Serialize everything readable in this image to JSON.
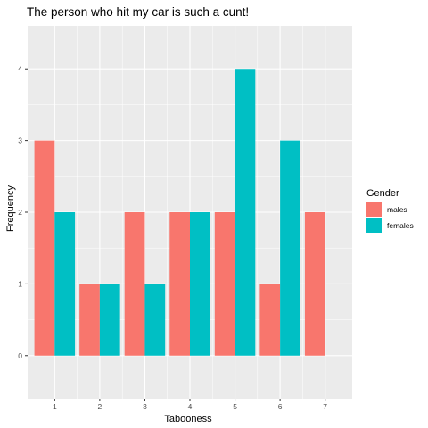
{
  "chart_data": {
    "type": "bar",
    "title": "The person who hit my car is such a cunt!",
    "xlabel": "Tabooness",
    "ylabel": "Frequency",
    "categories": [
      "1",
      "2",
      "3",
      "4",
      "5",
      "6",
      "7"
    ],
    "series": [
      {
        "name": "males",
        "values": [
          3,
          1,
          2,
          2,
          2,
          1,
          2
        ],
        "color": "#F8766D"
      },
      {
        "name": "females",
        "values": [
          2,
          1,
          1,
          2,
          4,
          3,
          null
        ],
        "color": "#00BFC4"
      }
    ],
    "yticks": [
      "0",
      "1",
      "2",
      "3",
      "4"
    ],
    "ylim": [
      -0.6,
      4.6
    ],
    "grid": true,
    "legend": {
      "title": "Gender",
      "position": "right"
    },
    "colors": {
      "panel": "#EBEBEB",
      "grid": "#FFFFFF"
    }
  }
}
